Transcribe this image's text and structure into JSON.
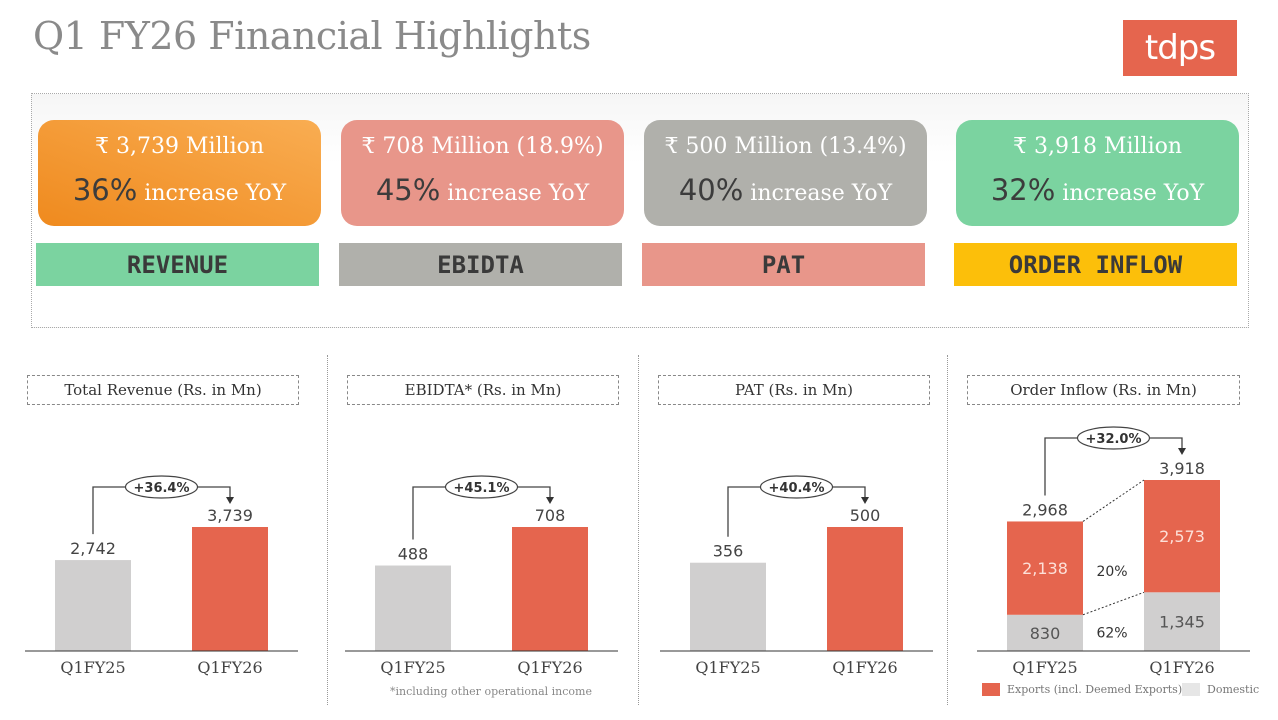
{
  "title": "Q1 FY26 Financial Highlights",
  "logo": "tdps",
  "kpis": [
    {
      "line1": "₹ 3,739 Million",
      "pct": "36%",
      "rest": " increase YoY",
      "label": "REVENUE",
      "card_color": "#f39a35",
      "band_color": "#7bd3a0"
    },
    {
      "line1": "₹ 708 Million (18.9%)",
      "pct": "45%",
      "rest": " increase YoY",
      "label": "EBIDTA",
      "card_color": "#e8968a",
      "band_color": "#b0b0ab"
    },
    {
      "line1": "₹ 500  Million (13.4%)",
      "pct": "40%",
      "rest": " increase YoY",
      "label": "PAT",
      "card_color": "#b0b0ab",
      "band_color": "#e8968a"
    },
    {
      "line1": "₹ 3,918 Million",
      "pct": "32%",
      "rest": " increase YoY",
      "label": "ORDER INFLOW",
      "card_color": "#7bd3a0",
      "band_color": "#fcbf0a"
    }
  ],
  "chart_data": [
    {
      "type": "bar",
      "title": "Total Revenue (Rs. in Mn)",
      "categories": [
        "Q1FY25",
        "Q1FY26"
      ],
      "values": [
        2742,
        3739
      ],
      "labels": [
        "2,742",
        "3,739"
      ],
      "growth": "+36.4%"
    },
    {
      "type": "bar",
      "title": "EBIDTA* (Rs. in Mn)",
      "categories": [
        "Q1FY25",
        "Q1FY26"
      ],
      "values": [
        488,
        708
      ],
      "labels": [
        "488",
        "708"
      ],
      "growth": "+45.1%",
      "footnote": "*including other operational income"
    },
    {
      "type": "bar",
      "title": "PAT (Rs. in Mn)",
      "categories": [
        "Q1FY25",
        "Q1FY26"
      ],
      "values": [
        356,
        500
      ],
      "labels": [
        "356",
        "500"
      ],
      "growth": "+40.4%"
    },
    {
      "type": "stacked-bar",
      "title": "Order Inflow (Rs. in Mn)",
      "categories": [
        "Q1FY25",
        "Q1FY26"
      ],
      "totals": [
        2968,
        3918
      ],
      "total_labels": [
        "2,968",
        "3,918"
      ],
      "growth": "+32.0%",
      "series": [
        {
          "name": "Domestic",
          "values": [
            830,
            1345
          ],
          "labels": [
            "830",
            "1,345"
          ],
          "change": "62%"
        },
        {
          "name": "Exports (incl. Deemed Exports)",
          "values": [
            2138,
            2573
          ],
          "labels": [
            "2,138",
            "2,573"
          ],
          "change": "20%"
        }
      ]
    }
  ],
  "colors": {
    "prior": "#d0cfcf",
    "current": "#e5654e"
  }
}
